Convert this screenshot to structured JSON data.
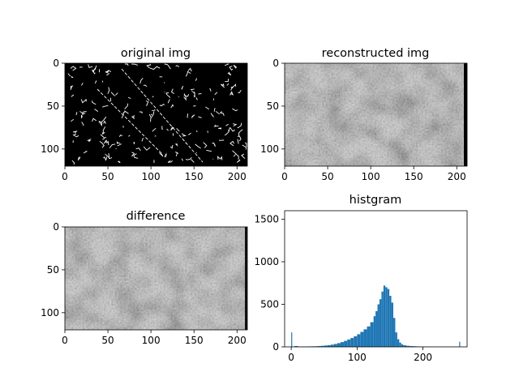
{
  "figure": {
    "background": "#ffffff"
  },
  "chart_data": [
    {
      "type": "heatmap",
      "title": "original img",
      "image_size": [
        212,
        120
      ],
      "colormap": "gray",
      "content": "sparse white edge-detection lines on black background",
      "xlim": [
        0,
        212
      ],
      "ylim": [
        120,
        0
      ],
      "xticks": [
        0,
        50,
        100,
        150,
        200
      ],
      "yticks": [
        0,
        50,
        100
      ]
    },
    {
      "type": "heatmap",
      "title": "reconstructed img",
      "image_size": [
        212,
        120
      ],
      "colormap": "gray",
      "content": "medium gray textured reconstruction with lighter blotches",
      "xlim": [
        0,
        212
      ],
      "ylim": [
        120,
        0
      ],
      "xticks": [
        0,
        50,
        100,
        150,
        200
      ],
      "yticks": [
        0,
        50,
        100
      ]
    },
    {
      "type": "heatmap",
      "title": "difference",
      "image_size": [
        212,
        120
      ],
      "colormap": "gray",
      "content": "medium gray textured difference map with lighter blotches",
      "xlim": [
        0,
        212
      ],
      "ylim": [
        120,
        0
      ],
      "xticks": [
        0,
        50,
        100,
        150,
        200
      ],
      "yticks": [
        0,
        50,
        100
      ]
    },
    {
      "type": "bar",
      "title": "histgram",
      "bar_color": "#1f77b4",
      "xlim": [
        -10,
        267
      ],
      "ylim": [
        0,
        1600
      ],
      "xticks": [
        0,
        100,
        200
      ],
      "yticks": [
        0,
        500,
        1000,
        1500
      ],
      "x": [
        0,
        5,
        10,
        15,
        20,
        25,
        30,
        35,
        40,
        45,
        50,
        55,
        60,
        65,
        70,
        75,
        80,
        85,
        90,
        95,
        100,
        105,
        110,
        115,
        120,
        125,
        128,
        131,
        134,
        137,
        140,
        143,
        146,
        149,
        152,
        155,
        158,
        161,
        164,
        167,
        170,
        175,
        180,
        185,
        190,
        195,
        200,
        210,
        220,
        230,
        240,
        250,
        255
      ],
      "values": [
        170,
        10,
        4,
        3,
        4,
        5,
        6,
        7,
        9,
        12,
        16,
        20,
        26,
        34,
        44,
        56,
        70,
        86,
        104,
        124,
        148,
        176,
        206,
        240,
        290,
        360,
        420,
        500,
        560,
        650,
        720,
        700,
        680,
        600,
        520,
        340,
        170,
        90,
        50,
        30,
        18,
        12,
        9,
        7,
        5,
        4,
        3,
        2,
        2,
        2,
        2,
        2,
        60
      ]
    }
  ]
}
